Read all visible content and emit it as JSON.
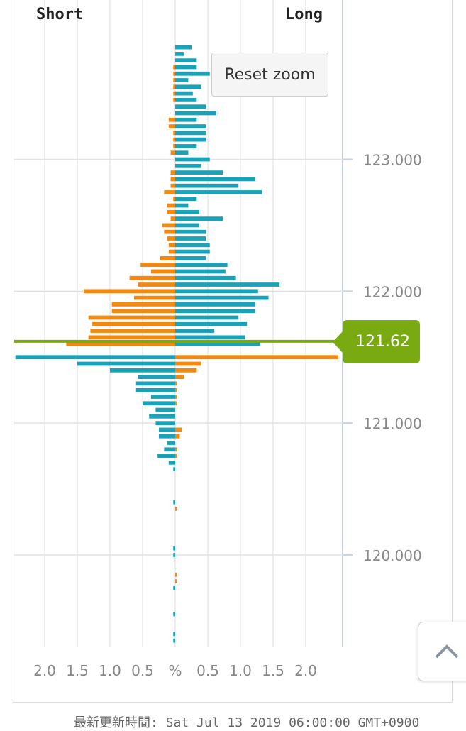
{
  "header": {
    "short_label": "Short",
    "long_label": "Long"
  },
  "reset_zoom_label": "Reset zoom",
  "current_price_label": "121.62",
  "footer_text": "最新更新時間: Sat Jul 13 2019 06:00:00 GMT+0900",
  "colors": {
    "long": "#1aa3b8",
    "short": "#f28a12",
    "price_line": "#7aaa12",
    "grid": "#e2e2e2",
    "axis": "#c7d3e3"
  },
  "icons": {
    "scroll_top": "chevron-up-icon"
  },
  "chart_data": {
    "type": "bar",
    "orientation": "horizontal",
    "x_tick_labels": [
      "2.0",
      "1.5",
      "1.0",
      "0.5",
      "%",
      "0.5",
      "1.0",
      "1.5",
      "2.0"
    ],
    "x_ticks": [
      -2.0,
      -1.5,
      -1.0,
      -0.5,
      0,
      0.5,
      1.0,
      1.5,
      2.0
    ],
    "xlim": [
      -2.5,
      2.55
    ],
    "y_ticks": [
      "123.000",
      "122.000",
      "121.000",
      "120.000"
    ],
    "y_tick_values": [
      123.0,
      122.0,
      121.0,
      120.0
    ],
    "ylim": [
      119.3,
      123.95
    ],
    "current_price": 121.62,
    "y_step": 0.05,
    "y_start": 123.85,
    "series": [
      {
        "name": "Long",
        "values": [
          0.25,
          0.13,
          0.33,
          0.33,
          0.53,
          0.2,
          0.4,
          0.27,
          0.33,
          0.47,
          0.63,
          0.33,
          0.47,
          0.47,
          0.47,
          0.33,
          0.2,
          0.53,
          0.4,
          0.73,
          1.23,
          0.97,
          1.33,
          0.33,
          0.2,
          0.37,
          0.73,
          0.37,
          0.47,
          0.47,
          0.53,
          0.53,
          0.47,
          0.8,
          0.77,
          0.93,
          1.6,
          1.27,
          1.43,
          1.23,
          1.23,
          0.97,
          1.1,
          0.6,
          1.07,
          1.3,
          0,
          -2.45,
          -1.5,
          -1.0,
          -0.57,
          -0.6,
          -0.6,
          -0.37,
          -0.5,
          -0.3,
          -0.4,
          -0.3,
          -0.25,
          -0.25,
          -0.13,
          -0.17,
          -0.27,
          -0.1,
          -0.03,
          0,
          0,
          0,
          0,
          -0.03,
          0,
          0,
          0,
          0,
          0,
          0,
          -0.03,
          -0.03,
          0,
          0,
          0,
          0,
          -0.03,
          0,
          0,
          0,
          -0.03,
          0,
          0,
          -0.03,
          -0.03
        ],
        "color": "#1aa3b8"
      },
      {
        "name": "Short",
        "values": [
          0,
          0,
          0,
          -0.03,
          -0.03,
          -0.03,
          -0.03,
          -0.03,
          -0.03,
          0,
          0,
          -0.1,
          -0.1,
          -0.03,
          -0.03,
          -0.03,
          -0.07,
          0,
          0,
          -0.07,
          -0.07,
          -0.07,
          -0.17,
          -0.03,
          -0.13,
          -0.13,
          -0.07,
          -0.2,
          -0.17,
          -0.13,
          -0.1,
          -0.1,
          -0.23,
          -0.53,
          -0.37,
          -0.7,
          -0.57,
          -1.4,
          -0.63,
          -0.97,
          -0.97,
          -1.33,
          -1.27,
          -1.3,
          -1.33,
          -1.67,
          0,
          2.5,
          0.4,
          0.33,
          0.13,
          0.03,
          0.03,
          0.03,
          0.03,
          0,
          0,
          0,
          0.1,
          0.07,
          0,
          0.03,
          0.03,
          0,
          0,
          0,
          0,
          0,
          0,
          0,
          0.03,
          0,
          0,
          0,
          0,
          0,
          0,
          0,
          0,
          0,
          0.03,
          0.03,
          0,
          0,
          0,
          0,
          0,
          0,
          0,
          0,
          0
        ],
        "color": "#f28a12"
      }
    ]
  }
}
